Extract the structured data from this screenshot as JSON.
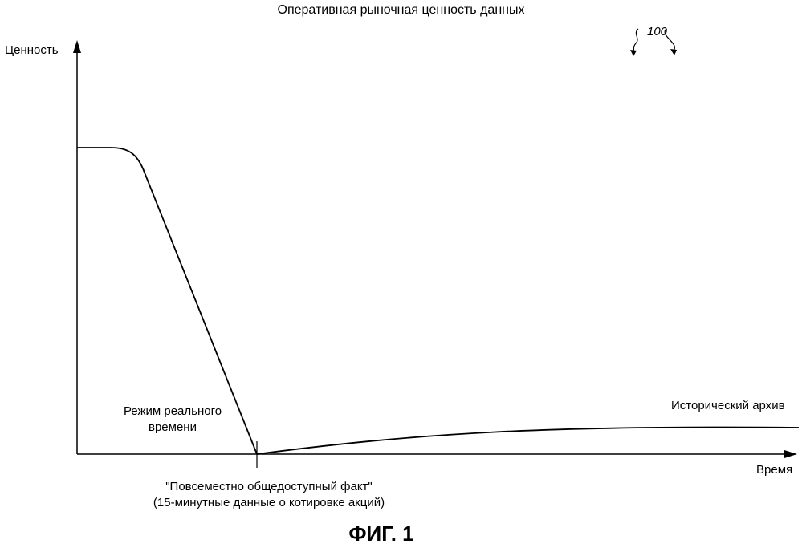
{
  "title": "Оперативная рыночная ценность данных",
  "reference_number": "100",
  "y_axis_label": "Ценность",
  "x_axis_label": "Время",
  "regions": {
    "left": [
      "Режим реального",
      "времени"
    ],
    "right": "Исторический архив"
  },
  "transition_label": [
    "\"Повсеместно общедоступный факт\"",
    "(15-минутные данные о котировке акций)"
  ],
  "figure_caption": "ФИГ. 1",
  "colors": {
    "line": "#000000",
    "background": "#ffffff"
  }
}
